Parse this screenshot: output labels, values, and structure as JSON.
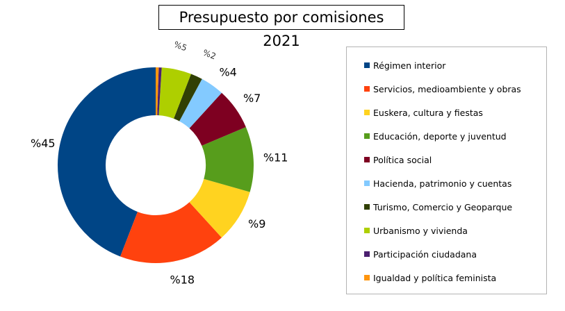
{
  "chart_data": {
    "type": "pie",
    "subtype": "donut",
    "title": "Presupuesto por comisiones 2021",
    "legend_position": "right",
    "categories": [
      "Régimen interior",
      "Servicios, medioambiente y obras",
      "Euskera, cultura y fiestas",
      "Educación, deporte y juventud",
      "Política social",
      "Hacienda, patrimonio y cuentas",
      "Turismo, Comercio y Geoparque",
      "Urbanismo y vivienda",
      "Participación ciudadana",
      "Igualdad y política feminista"
    ],
    "values": [
      45,
      18,
      9,
      11,
      7,
      4,
      2,
      5,
      0.5,
      0.5
    ],
    "data_labels": [
      "%45",
      "%18",
      "%9",
      "%11",
      "%7",
      "%4",
      "%2",
      "%5",
      "",
      ""
    ],
    "colors": [
      "#004586",
      "#ff420e",
      "#ffd320",
      "#579d1c",
      "#7e0021",
      "#83caff",
      "#314004",
      "#aecf00",
      "#4b1f6f",
      "#ff950e"
    ]
  }
}
